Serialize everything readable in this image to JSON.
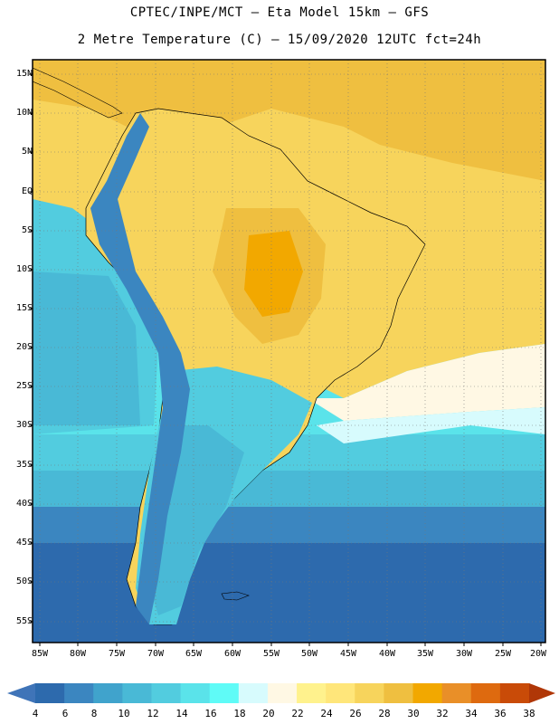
{
  "header": {
    "title_line1": "CPTEC/INPE/MCT –  Eta Model 15km – GFS",
    "title_line2": "2 Metre Temperature (C) – 15/09/2020 12UTC fct=24h"
  },
  "map": {
    "lat_labels": [
      "15N",
      "10N",
      "5N",
      "EQ",
      "5S",
      "10S",
      "15S",
      "20S",
      "25S",
      "30S",
      "35S",
      "40S",
      "45S",
      "50S",
      "55S"
    ],
    "lon_labels": [
      "85W",
      "80W",
      "75W",
      "70W",
      "65W",
      "60W",
      "55W",
      "50W",
      "45W",
      "40W",
      "35W",
      "30W",
      "25W",
      "20W"
    ],
    "lat_range": [
      15,
      -58
    ],
    "lon_range": [
      -85,
      -20
    ],
    "grid": true
  },
  "colorbar": {
    "values": [
      "4",
      "6",
      "8",
      "10",
      "12",
      "14",
      "16",
      "18",
      "20",
      "22",
      "24",
      "26",
      "28",
      "30",
      "32",
      "34",
      "36",
      "38"
    ],
    "colors": [
      "#3f74b8",
      "#2d6aad",
      "#3b86c0",
      "#40a3cc",
      "#49b9d6",
      "#52ccdf",
      "#5ae3ea",
      "#5ffbf7",
      "#d7fbfd",
      "#fff8e4",
      "#fff28d",
      "#ffe67a",
      "#f7d45c",
      "#efbf40",
      "#f2a800",
      "#e98f28",
      "#de6a0f",
      "#c94b08",
      "#b03707"
    ]
  }
}
